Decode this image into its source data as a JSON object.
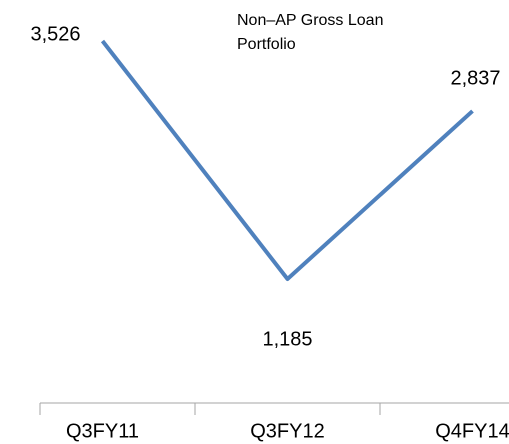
{
  "chart_data": {
    "type": "line",
    "title": "Non–AP Gross Loan Portfolio",
    "categories": [
      "Q3FY11",
      "Q3FY12",
      "Q4FY14"
    ],
    "values": [
      3526,
      1185,
      2837
    ],
    "value_labels": [
      "3,526",
      "1,185",
      "2,837"
    ],
    "color": "#4f81bd"
  }
}
